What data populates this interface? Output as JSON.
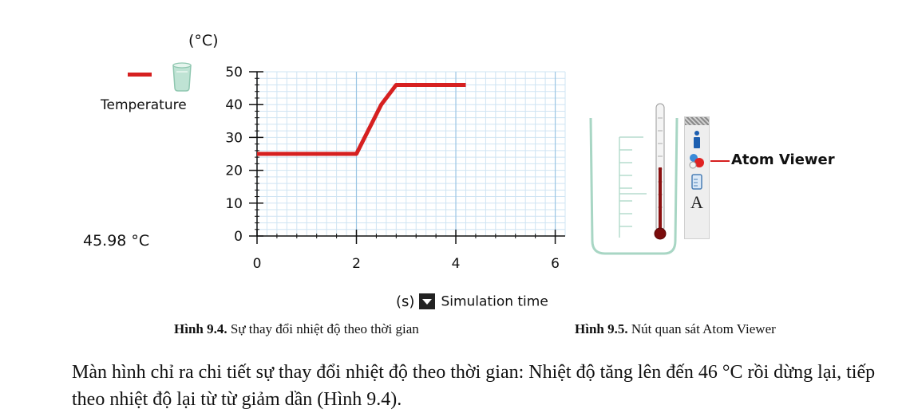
{
  "figure1": {
    "y_unit": "(°C)",
    "legend_label": "Temperature",
    "readout": "45.98 °C",
    "x_unit": "(s)",
    "x_axis_menu": "Simulation time",
    "caption_bold": "Hình 9.4.",
    "caption_text": " Sự thay đổi nhiệt độ theo thời gian",
    "line_color": "#d62020"
  },
  "chart_data": {
    "type": "line",
    "x": [
      0,
      2.0,
      2.1,
      2.3,
      2.5,
      2.7,
      2.8,
      3.0,
      4.2
    ],
    "series": [
      {
        "name": "Temperature",
        "values": [
          25,
          25,
          28,
          34,
          40,
          44,
          46,
          46,
          46
        ]
      }
    ],
    "x_ticks": [
      "0",
      "2",
      "4",
      "6"
    ],
    "y_ticks": [
      "0",
      "10",
      "20",
      "30",
      "40",
      "50"
    ],
    "xlim": [
      0,
      6.2
    ],
    "ylim": [
      0,
      50
    ],
    "grid": true
  },
  "figure2": {
    "callout_label": "Atom Viewer",
    "caption_bold": "Hình 9.5.",
    "caption_text": " Nút quan sát Atom Viewer",
    "toolbar_icons": [
      "info-icon",
      "atom-icon",
      "beaker-icon",
      "text-icon"
    ],
    "text_tool_glyph": "A"
  },
  "body_paragraph": "Màn hình chỉ ra chi tiết sự thay đổi nhiệt độ theo thời gian: Nhiệt độ tăng lên đến 46 °C rồi dừng lại, tiếp theo nhiệt độ lại từ từ giảm dần (Hình 9.4)."
}
